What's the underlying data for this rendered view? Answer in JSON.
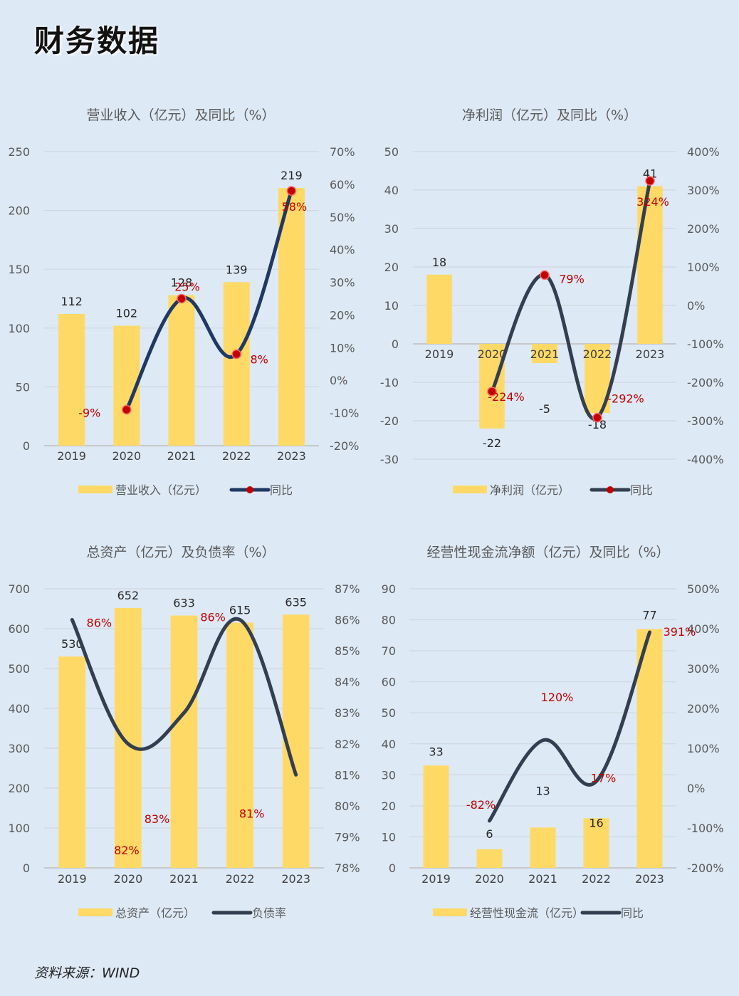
{
  "page": {
    "title": "财务数据",
    "source": "资料来源：WIND"
  },
  "colors": {
    "bar": "#ffd966",
    "line_a": "#1f3864",
    "line_b": "#333f50",
    "dot": "#c00000",
    "label_red": "#c00000",
    "grid": "#d0d8e0",
    "axis_text": "#595959"
  },
  "chart_data": [
    {
      "type": "bar+line",
      "title": "营业收入（亿元）及同比（%）",
      "categories": [
        "2019",
        "2020",
        "2021",
        "2022",
        "2023"
      ],
      "series": [
        {
          "name": "营业收入（亿元）",
          "type": "bar",
          "axis": "left",
          "values": [
            112,
            102,
            128,
            139,
            219
          ],
          "labels": [
            "112",
            "102",
            "128",
            "139",
            "219"
          ]
        },
        {
          "name": "同比",
          "type": "line",
          "axis": "right",
          "values": [
            null,
            -9,
            25,
            8,
            58
          ],
          "labels": [
            "",
            "-9%",
            "25%",
            "8%",
            "58%"
          ],
          "markers": true
        }
      ],
      "left_axis": {
        "ylim": [
          0,
          250
        ],
        "ticks": [
          "0",
          "50",
          "100",
          "150",
          "200",
          "250"
        ]
      },
      "right_axis": {
        "ylim": [
          -20,
          70
        ],
        "ticks": [
          "-20%",
          "-10%",
          "0%",
          "10%",
          "20%",
          "30%",
          "40%",
          "50%",
          "60%",
          "70%"
        ]
      },
      "legend": "bottom"
    },
    {
      "type": "bar+line",
      "title": "净利润（亿元）及同比（%）",
      "categories": [
        "2019",
        "2020",
        "2021",
        "2022",
        "2023"
      ],
      "series": [
        {
          "name": "净利润（亿元）",
          "type": "bar",
          "axis": "left",
          "values": [
            18,
            -22,
            -5,
            -18,
            41
          ],
          "labels": [
            "18",
            "-22",
            "-5",
            "-18",
            "41"
          ]
        },
        {
          "name": "同比",
          "type": "line",
          "axis": "right",
          "values": [
            null,
            -224,
            79,
            -292,
            324
          ],
          "labels": [
            "",
            "-224%",
            "79%",
            "-292%",
            "324%"
          ],
          "markers": true
        }
      ],
      "left_axis": {
        "ylim": [
          -30,
          50
        ],
        "ticks": [
          "-30",
          "-20",
          "-10",
          "0",
          "10",
          "20",
          "30",
          "40",
          "50"
        ]
      },
      "right_axis": {
        "ylim": [
          -400,
          400
        ],
        "ticks": [
          "-400%",
          "-300%",
          "-200%",
          "-100%",
          "0%",
          "100%",
          "200%",
          "300%",
          "400%"
        ]
      },
      "legend": "bottom"
    },
    {
      "type": "bar+line",
      "title": "总资产（亿元）及负债率（%）",
      "categories": [
        "2019",
        "2020",
        "2021",
        "2022",
        "2023"
      ],
      "series": [
        {
          "name": "总资产（亿元）",
          "type": "bar",
          "axis": "left",
          "values": [
            530,
            652,
            633,
            615,
            635
          ],
          "labels": [
            "530",
            "652",
            "633",
            "615",
            "635"
          ]
        },
        {
          "name": "负债率",
          "type": "line",
          "axis": "right",
          "values": [
            86,
            82,
            83,
            86,
            81
          ],
          "labels": [
            "86%",
            "82%",
            "83%",
            "86%",
            "81%"
          ],
          "markers": false
        }
      ],
      "left_axis": {
        "ylim": [
          0,
          700
        ],
        "ticks": [
          "0",
          "100",
          "200",
          "300",
          "400",
          "500",
          "600",
          "700"
        ]
      },
      "right_axis": {
        "ylim": [
          78,
          87
        ],
        "ticks": [
          "78%",
          "79%",
          "80%",
          "81%",
          "82%",
          "83%",
          "84%",
          "85%",
          "86%",
          "87%"
        ]
      },
      "legend": "bottom"
    },
    {
      "type": "bar+line",
      "title": "经营性现金流净额（亿元）及同比（%）",
      "categories": [
        "2019",
        "2020",
        "2021",
        "2022",
        "2023"
      ],
      "series": [
        {
          "name": "经营性现金流（亿元）",
          "type": "bar",
          "axis": "left",
          "values": [
            33,
            6,
            13,
            16,
            77
          ],
          "labels": [
            "33",
            "6",
            "13",
            "16",
            "77"
          ]
        },
        {
          "name": "同比",
          "type": "line",
          "axis": "right",
          "values": [
            null,
            -82,
            120,
            17,
            391
          ],
          "labels": [
            "",
            "-82%",
            "120%",
            "17%",
            "391%"
          ],
          "markers": false
        }
      ],
      "left_axis": {
        "ylim": [
          0,
          90
        ],
        "ticks": [
          "0",
          "10",
          "20",
          "30",
          "40",
          "50",
          "60",
          "70",
          "80",
          "90"
        ]
      },
      "right_axis": {
        "ylim": [
          -200,
          500
        ],
        "ticks": [
          "-200%",
          "-100%",
          "0%",
          "100%",
          "200%",
          "300%",
          "400%",
          "500%"
        ]
      },
      "legend": "bottom"
    }
  ]
}
